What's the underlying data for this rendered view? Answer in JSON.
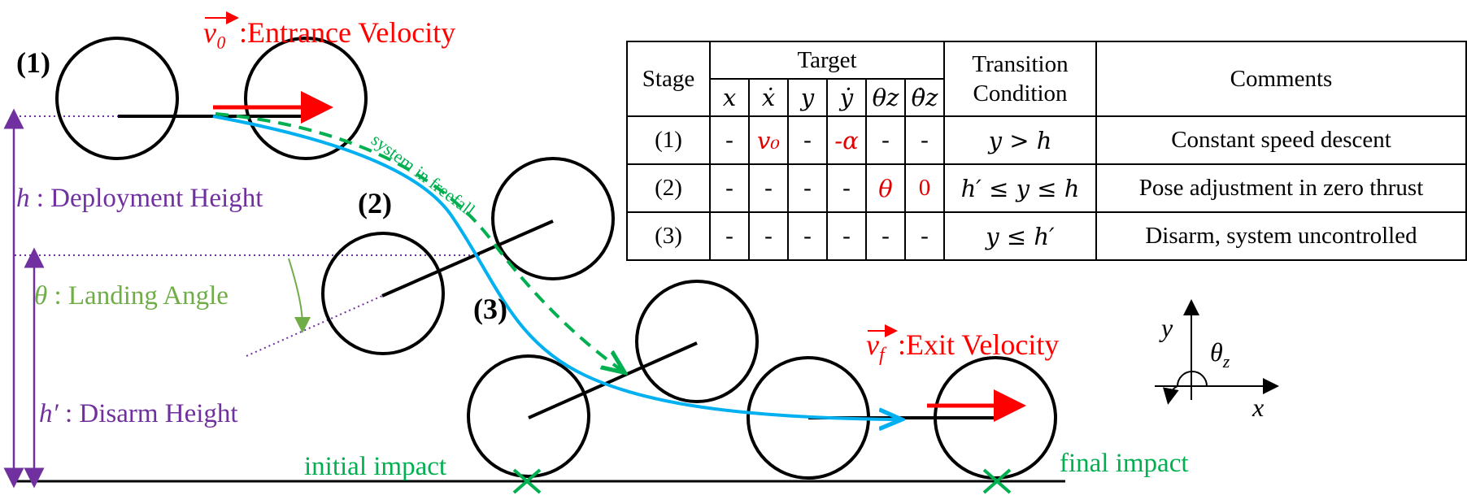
{
  "labels": {
    "entrance_sym": "v₀",
    "entrance_text": ":Entrance Velocity",
    "exit_sym": "v",
    "exit_sub": "f",
    "exit_text": ":Exit Velocity",
    "stage1": "(1)",
    "stage2": "(2)",
    "stage3": "(3)",
    "deploy_sym": "h",
    "deploy_text": " : Deployment Height",
    "angle_sym": "θ",
    "angle_text": " : Landing Angle",
    "disarm_sym": "h′",
    "disarm_text": " : Disarm Height",
    "freefall": "system in freefall",
    "initial_impact": "initial impact",
    "final_impact": "final impact",
    "axis_y": "y",
    "axis_x": "x",
    "axis_theta": "θ",
    "axis_theta_sub": "z"
  },
  "colors": {
    "red": "#ff0000",
    "purple": "#7030a0",
    "green": "#00b050",
    "landing_green": "#70ad47",
    "blue": "#00b0f0",
    "black": "#000000"
  },
  "table": {
    "header_stage": "Stage",
    "header_target": "Target",
    "header_transition_1": "Transition",
    "header_transition_2": "Condition",
    "header_comments": "Comments",
    "target_columns": [
      "x",
      "ẋ",
      "y",
      "ẏ",
      "θz",
      "θ̇z"
    ],
    "rows": [
      {
        "stage": "(1)",
        "targets": [
          "-",
          "v₀",
          "-",
          "-α",
          "-",
          "-"
        ],
        "condition": "y >  h",
        "comment": "Constant speed descent"
      },
      {
        "stage": "(2)",
        "targets": [
          "-",
          "-",
          "-",
          "-",
          "θ",
          "0"
        ],
        "condition": "h′ ≤ y ≤  h",
        "comment": "Pose adjustment in zero thrust"
      },
      {
        "stage": "(3)",
        "targets": [
          "-",
          "-",
          "-",
          "-",
          "-",
          "-"
        ],
        "condition": "y ≤  h′",
        "comment": "Disarm, system uncontrolled"
      }
    ]
  }
}
